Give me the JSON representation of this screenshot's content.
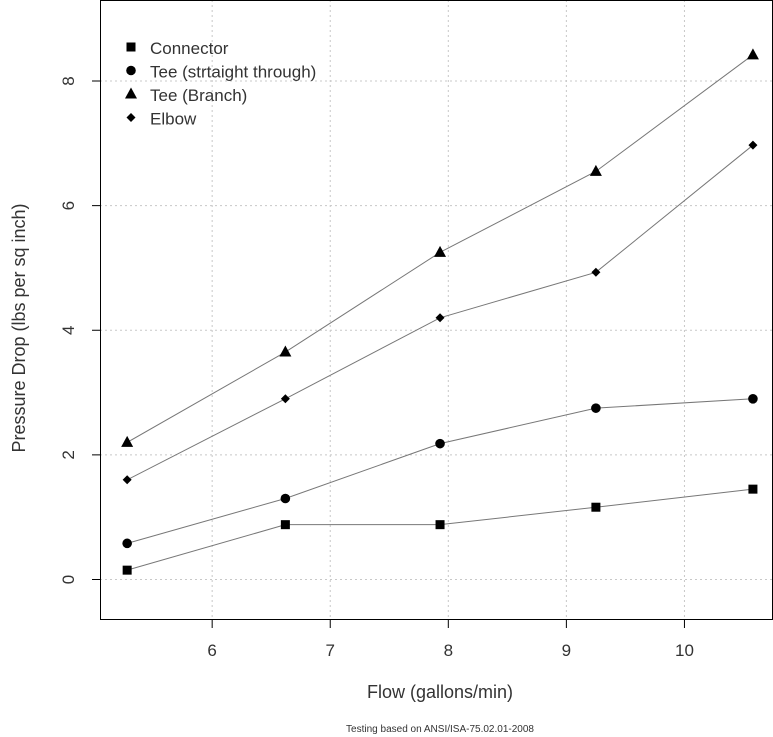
{
  "chart_data": {
    "type": "line",
    "title": "",
    "xlabel": "Flow (gallons/min)",
    "ylabel": "Pressure Drop (lbs per sq inch)",
    "caption": "Testing based on ANSI/ISA-75.02.01-2008",
    "xlim": [
      5.05,
      10.75
    ],
    "ylim": [
      -0.65,
      9.3
    ],
    "xticks": [
      6,
      7,
      8,
      9,
      10
    ],
    "yticks": [
      0,
      2,
      4,
      6,
      8
    ],
    "grid": true,
    "legend_position": "top-left",
    "line_color": "#777777",
    "marker_color": "#000000",
    "x": [
      5.28,
      6.62,
      7.93,
      9.25,
      10.58
    ],
    "series": [
      {
        "name": "Connector",
        "marker": "square",
        "values": [
          0.15,
          0.88,
          0.88,
          1.16,
          1.45
        ]
      },
      {
        "name": "Tee (strtaight through)",
        "marker": "circle",
        "values": [
          0.58,
          1.3,
          2.18,
          2.75,
          2.9
        ]
      },
      {
        "name": "Tee (Branch)",
        "marker": "triangle",
        "values": [
          2.2,
          3.65,
          5.25,
          6.55,
          8.42
        ]
      },
      {
        "name": "Elbow",
        "marker": "diamond",
        "values": [
          1.6,
          2.9,
          4.2,
          4.93,
          6.97
        ]
      }
    ]
  }
}
